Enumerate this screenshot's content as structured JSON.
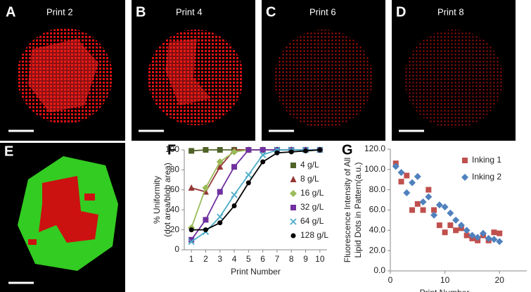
{
  "panels": [
    {
      "letter": "A",
      "label": "Print 2"
    },
    {
      "letter": "B",
      "label": "Print 4"
    },
    {
      "letter": "C",
      "label": "Print 6"
    },
    {
      "letter": "D",
      "label": "Print 8"
    },
    {
      "letter": "E"
    }
  ],
  "chart_data": [
    {
      "type": "line",
      "panel": "F",
      "ylabel": [
        "% Uniformity",
        "(dot area/blob area)"
      ],
      "xlabel": "Print Number",
      "x": [
        1,
        2,
        3,
        4,
        5,
        6,
        7,
        8,
        9,
        10
      ],
      "xlim": [
        0.5,
        10.5
      ],
      "xticks": [
        1,
        2,
        3,
        4,
        5,
        6,
        7,
        8,
        9,
        10
      ],
      "ylim": [
        0,
        100
      ],
      "yticks": [
        0,
        20,
        40,
        60,
        80,
        100
      ],
      "series": [
        {
          "name": "4 g/L",
          "color": "#4f6228",
          "marker": "square",
          "values": [
            99,
            100,
            100,
            100,
            100,
            100,
            100,
            100,
            100,
            100
          ]
        },
        {
          "name": "8 g/L",
          "color": "#953735",
          "marker": "triangle",
          "values": [
            62,
            58,
            83,
            100,
            100,
            100,
            100,
            100,
            100,
            100
          ]
        },
        {
          "name": "16 g/L",
          "color": "#9bbb59",
          "marker": "diamond",
          "values": [
            22,
            62,
            88,
            98,
            100,
            100,
            100,
            100,
            100,
            100
          ]
        },
        {
          "name": "32 g/L",
          "color": "#7030a0",
          "marker": "square",
          "values": [
            10,
            30,
            58,
            83,
            100,
            100,
            100,
            100,
            100,
            100
          ]
        },
        {
          "name": "64 g/L",
          "color": "#4bacc6",
          "marker": "x",
          "values": [
            8,
            18,
            33,
            55,
            75,
            95,
            100,
            100,
            100,
            100
          ]
        },
        {
          "name": "128 g/L",
          "color": "#000000",
          "marker": "circle",
          "values": [
            20,
            20,
            27,
            44,
            67,
            88,
            97,
            98,
            99,
            100
          ]
        }
      ]
    },
    {
      "type": "scatter",
      "panel": "G",
      "ylabel": [
        "Fluorescence Intensity of All",
        "Lipid Dots  in Pattern(a.u.)"
      ],
      "xlabel": "Print Number",
      "xlim": [
        0,
        25
      ],
      "xticks": [
        0,
        10,
        20
      ],
      "ylim": [
        0,
        120
      ],
      "yticks": [
        {
          "value": 0,
          "label": "0.0"
        },
        {
          "value": 20,
          "label": "20.0"
        },
        {
          "value": 40,
          "label": "40.0"
        },
        {
          "value": 60,
          "label": "60.0"
        },
        {
          "value": 80,
          "label": "80.0"
        },
        {
          "value": 100,
          "label": "100.0"
        },
        {
          "value": 120,
          "label": "120.0"
        }
      ],
      "legend": "upper right",
      "series": [
        {
          "name": "Inking 1",
          "color": "#c0504d",
          "marker": "square",
          "x": [
            1,
            2,
            3,
            4,
            5,
            6,
            7,
            8,
            9,
            10,
            11,
            12,
            13,
            14,
            15,
            16,
            17,
            18,
            19,
            20
          ],
          "values": [
            106,
            88,
            94,
            60,
            66,
            60,
            80,
            60,
            45,
            38,
            45,
            40,
            42,
            35,
            32,
            30,
            35,
            30,
            38,
            37
          ]
        },
        {
          "name": "Inking 2",
          "color": "#4f81bd",
          "marker": "diamond",
          "x": [
            1,
            2,
            3,
            4,
            5,
            6,
            7,
            8,
            9,
            10,
            11,
            12,
            13,
            14,
            15,
            16,
            17,
            18,
            19,
            20
          ],
          "values": [
            103,
            97,
            77,
            87,
            93,
            68,
            73,
            55,
            65,
            63,
            57,
            50,
            45,
            40,
            35,
            33,
            37,
            32,
            31,
            29
          ]
        }
      ]
    }
  ]
}
